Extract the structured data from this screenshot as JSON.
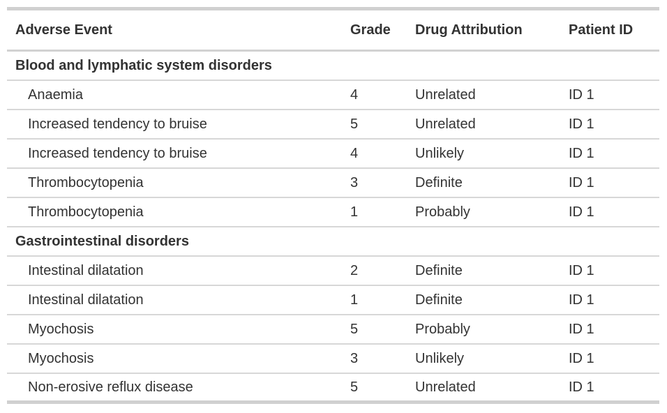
{
  "chart_data": {
    "type": "table",
    "columns": [
      "Adverse Event",
      "Grade",
      "Drug Attribution",
      "Patient ID"
    ],
    "groups": [
      {
        "label": "Blood and lymphatic system disorders",
        "rows": [
          [
            "Anaemia",
            "4",
            "Unrelated",
            "ID 1"
          ],
          [
            "Increased tendency to bruise",
            "5",
            "Unrelated",
            "ID 1"
          ],
          [
            "Increased tendency to bruise",
            "4",
            "Unlikely",
            "ID 1"
          ],
          [
            "Thrombocytopenia",
            "3",
            "Definite",
            "ID 1"
          ],
          [
            "Thrombocytopenia",
            "1",
            "Probably",
            "ID 1"
          ]
        ]
      },
      {
        "label": "Gastrointestinal disorders",
        "rows": [
          [
            "Intestinal dilatation",
            "2",
            "Definite",
            "ID 1"
          ],
          [
            "Intestinal dilatation",
            "1",
            "Definite",
            "ID 1"
          ],
          [
            "Myochosis",
            "5",
            "Probably",
            "ID 1"
          ],
          [
            "Myochosis",
            "3",
            "Unlikely",
            "ID 1"
          ],
          [
            "Non-erosive reflux disease",
            "5",
            "Unrelated",
            "ID 1"
          ]
        ]
      }
    ],
    "layout": {
      "grid": "horizontal-rules-only",
      "legend": "none"
    },
    "colors": {
      "text": "#333333",
      "rule_light": "#d7d7d7",
      "rule_heavy": "#d0d0d0",
      "background": "#ffffff"
    }
  }
}
